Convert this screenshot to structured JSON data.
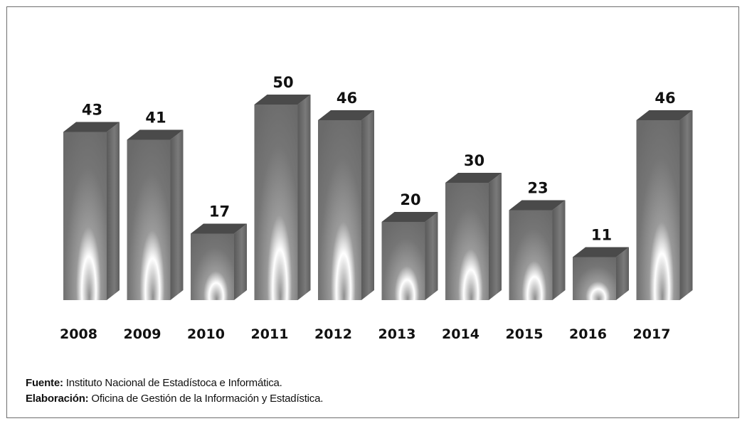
{
  "chart_data": {
    "type": "bar",
    "categories": [
      "2008",
      "2009",
      "2010",
      "2011",
      "2012",
      "2013",
      "2014",
      "2015",
      "2016",
      "2017"
    ],
    "values": [
      43,
      41,
      17,
      50,
      46,
      20,
      30,
      23,
      11,
      46
    ],
    "data_labels": [
      "43",
      "41",
      "17",
      "50",
      "46",
      "20",
      "30",
      "23",
      "11",
      "46"
    ],
    "title": "",
    "xlabel": "",
    "ylabel": "",
    "ylim": [
      0,
      50
    ],
    "grid": false,
    "legend": "none",
    "bar_style": "3d-grey-gradient"
  },
  "footer": {
    "source_label": "Fuente:",
    "source_text": "Instituto Nacional de Estadístoca e Informática.",
    "credit_label": "Elaboración:",
    "credit_text": "Oficina de Gestión de la Información y Estadística."
  },
  "colors": {
    "bar_front_dark": "#6f6f6f",
    "bar_highlight": "#ffffff",
    "bar_side": "#555555",
    "bar_top": "#4a4a4a",
    "text": "#111111",
    "border": "#6e6e6e"
  }
}
